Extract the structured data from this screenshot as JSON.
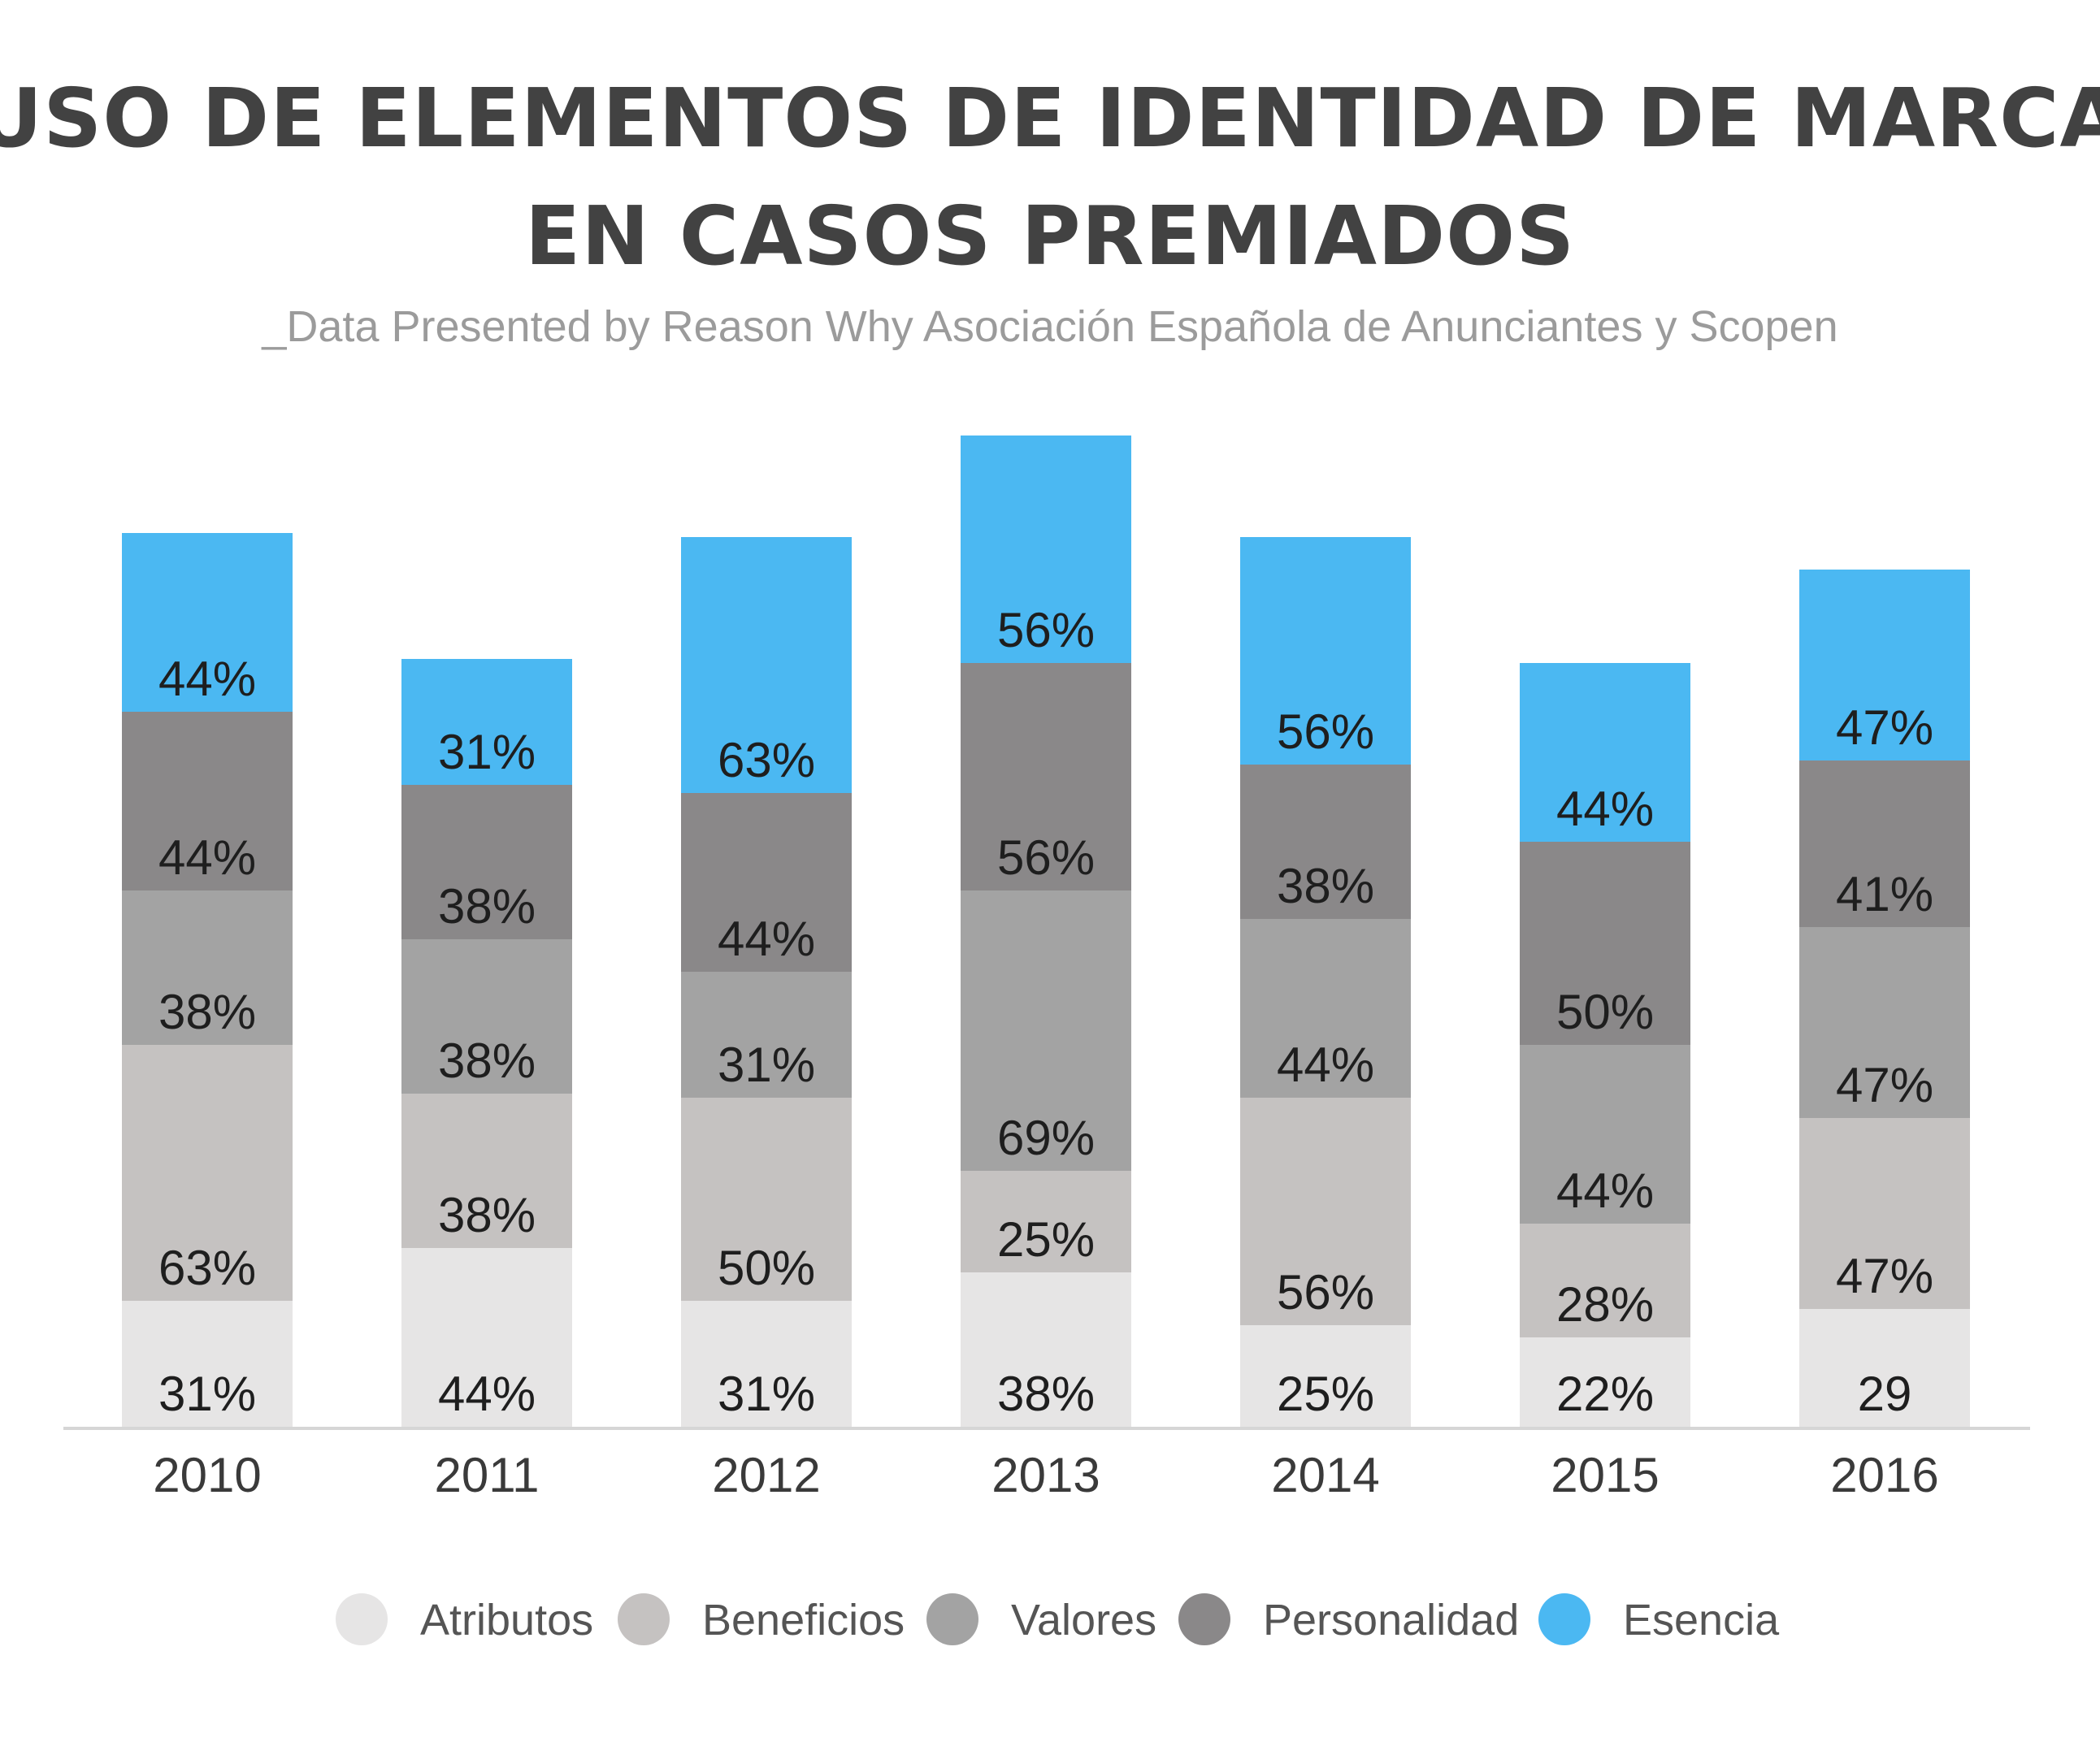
{
  "chart_data": {
    "type": "bar",
    "stacked": true,
    "title_lines": [
      "USO DE ELEMENTOS DE IDENTIDAD DE MARCA",
      "EN CASOS PREMIADOS"
    ],
    "subtitle": "_Data Presented by Reason Why Asociación Española de Anunciantes y Scopen",
    "categories": [
      "2010",
      "2011",
      "2012",
      "2013",
      "2014",
      "2015",
      "2016"
    ],
    "series": [
      {
        "name": "Atributos",
        "color": "#e6e5e5",
        "values": [
          31,
          44,
          31,
          38,
          25,
          22,
          29
        ],
        "labels": [
          "31%",
          "44%",
          "31%",
          "38%",
          "25%",
          "22%",
          "29"
        ]
      },
      {
        "name": "Beneficios",
        "color": "#c5c2c1",
        "values": [
          63,
          38,
          50,
          25,
          56,
          28,
          47
        ],
        "labels": [
          "63%",
          "38%",
          "50%",
          "25%",
          "56%",
          "28%",
          "47%"
        ]
      },
      {
        "name": "Valores",
        "color": "#a3a3a3",
        "values": [
          38,
          38,
          31,
          69,
          44,
          44,
          47
        ],
        "labels": [
          "38%",
          "38%",
          "31%",
          "69%",
          "44%",
          "44%",
          "47%"
        ]
      },
      {
        "name": "Personalidad",
        "color": "#8a8889",
        "values": [
          44,
          38,
          44,
          56,
          38,
          50,
          41
        ],
        "labels": [
          "44%",
          "38%",
          "44%",
          "56%",
          "38%",
          "50%",
          "41%"
        ]
      },
      {
        "name": "Esencia",
        "color": "#4bb8f2",
        "values": [
          44,
          31,
          63,
          56,
          56,
          44,
          47
        ],
        "labels": [
          "44%",
          "31%",
          "63%",
          "56%",
          "56%",
          "44%",
          "47%"
        ]
      }
    ],
    "legend_position": "bottom",
    "grid": false,
    "ylim": [
      0,
      250
    ]
  }
}
